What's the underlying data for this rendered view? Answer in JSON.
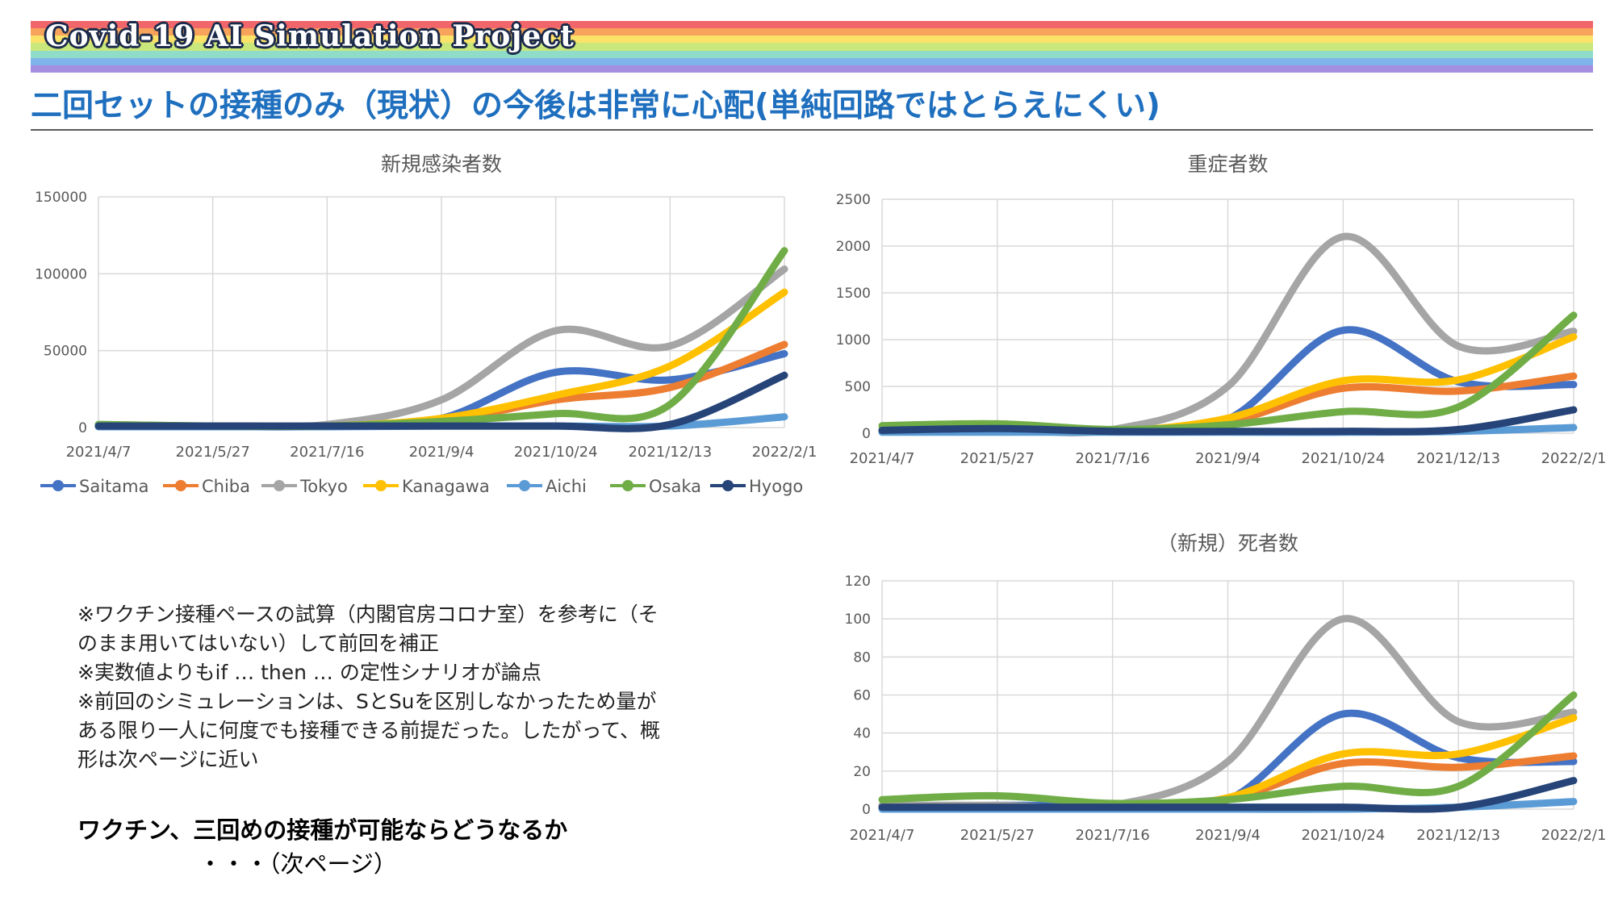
{
  "banner": {
    "title": "Covid-19 AI Simulation Project",
    "stripe_colors": [
      "#f0666b",
      "#f7a35b",
      "#fbe36a",
      "#c9e77a",
      "#8fdcc9",
      "#7fb4ea",
      "#a48ee0"
    ]
  },
  "heading": "二回セットの接種のみ（現状）の今後は非常に心配(単純回路ではとらえにくい)",
  "notes": [
    "※ワクチン接種ペースの試算（内閣官房コロナ室）を参考に（そ",
    "のまま用いてはいない）して前回を補正",
    "※実数値よりもif … then … の定性シナリオが論点",
    "※前回のシミュレーションは、SとSuを区別しなかったため量が",
    "ある限り一人に何度でも接種できる前提だった。したがって、概",
    "形は次ページに近い"
  ],
  "question": "ワクチン、三回めの接種が可能ならどうなるか",
  "next_page": "・・・（次ページ）",
  "chart_data": [
    {
      "type": "line",
      "title": "新規感染者数",
      "x": [
        "2021/4/7",
        "2021/5/27",
        "2021/7/16",
        "2021/9/4",
        "2021/10/24",
        "2021/12/13",
        "2022/2/1"
      ],
      "ylim": [
        0,
        150000
      ],
      "yticks": [
        0,
        50000,
        100000,
        150000
      ],
      "grid": true,
      "legend": "bottom",
      "series": [
        {
          "name": "Saitama",
          "color": "#4472c4",
          "values": [
            1000,
            1000,
            1000,
            6000,
            36000,
            31000,
            48000
          ]
        },
        {
          "name": "Chiba",
          "color": "#ed7d31",
          "values": [
            1000,
            1000,
            1000,
            4000,
            18000,
            26000,
            54000
          ]
        },
        {
          "name": "Tokyo",
          "color": "#a5a5a5",
          "values": [
            2000,
            1000,
            2000,
            18000,
            63000,
            53000,
            103000
          ]
        },
        {
          "name": "Kanagawa",
          "color": "#ffc000",
          "values": [
            1000,
            1000,
            1000,
            6000,
            21000,
            40000,
            88000
          ]
        },
        {
          "name": "Aichi",
          "color": "#5b9bd5",
          "values": [
            500,
            500,
            500,
            1000,
            1000,
            1000,
            7000
          ]
        },
        {
          "name": "Osaka",
          "color": "#70ad47",
          "values": [
            2000,
            1000,
            1000,
            4000,
            9000,
            15000,
            115000
          ]
        },
        {
          "name": "Hyogo",
          "color": "#264478",
          "values": [
            1000,
            1000,
            1000,
            1000,
            1000,
            2000,
            34000
          ]
        }
      ]
    },
    {
      "type": "line",
      "title": "重症者数",
      "x": [
        "2021/4/7",
        "2021/5/27",
        "2021/7/16",
        "2021/9/4",
        "2021/10/24",
        "2021/12/13",
        "2022/2/1"
      ],
      "ylim": [
        0,
        2500
      ],
      "yticks": [
        0,
        500,
        1000,
        1500,
        2000,
        2500
      ],
      "grid": true,
      "legend": "none",
      "series": [
        {
          "name": "Saitama",
          "color": "#4472c4",
          "values": [
            20,
            30,
            20,
            150,
            1100,
            550,
            520
          ]
        },
        {
          "name": "Chiba",
          "color": "#ed7d31",
          "values": [
            20,
            30,
            20,
            120,
            480,
            450,
            610
          ]
        },
        {
          "name": "Tokyo",
          "color": "#a5a5a5",
          "values": [
            40,
            40,
            40,
            500,
            2100,
            930,
            1090
          ]
        },
        {
          "name": "Kanagawa",
          "color": "#ffc000",
          "values": [
            30,
            30,
            20,
            160,
            560,
            570,
            1030
          ]
        },
        {
          "name": "Aichi",
          "color": "#5b9bd5",
          "values": [
            10,
            10,
            10,
            10,
            10,
            20,
            60
          ]
        },
        {
          "name": "Osaka",
          "color": "#70ad47",
          "values": [
            80,
            100,
            40,
            90,
            230,
            280,
            1260
          ]
        },
        {
          "name": "Hyogo",
          "color": "#264478",
          "values": [
            30,
            50,
            20,
            20,
            20,
            40,
            250
          ]
        }
      ]
    },
    {
      "type": "line",
      "title": "（新規）死者数",
      "x": [
        "2021/4/7",
        "2021/5/27",
        "2021/7/16",
        "2021/9/4",
        "2021/10/24",
        "2021/12/13",
        "2022/2/1"
      ],
      "ylim": [
        0,
        120
      ],
      "yticks": [
        0,
        20,
        40,
        60,
        80,
        100,
        120
      ],
      "grid": true,
      "legend": "none",
      "series": [
        {
          "name": "Saitama",
          "color": "#4472c4",
          "values": [
            1,
            2,
            2,
            5,
            50,
            27,
            25
          ]
        },
        {
          "name": "Chiba",
          "color": "#ed7d31",
          "values": [
            1,
            1,
            1,
            5,
            24,
            22,
            28
          ]
        },
        {
          "name": "Tokyo",
          "color": "#a5a5a5",
          "values": [
            2,
            2,
            2,
            25,
            100,
            46,
            51
          ]
        },
        {
          "name": "Kanagawa",
          "color": "#ffc000",
          "values": [
            1,
            1,
            1,
            6,
            29,
            29,
            48
          ]
        },
        {
          "name": "Aichi",
          "color": "#5b9bd5",
          "values": [
            0,
            0,
            0,
            0,
            0,
            1,
            4
          ]
        },
        {
          "name": "Osaka",
          "color": "#70ad47",
          "values": [
            5,
            7,
            3,
            5,
            12,
            12,
            60
          ]
        },
        {
          "name": "Hyogo",
          "color": "#264478",
          "values": [
            1,
            1,
            1,
            1,
            1,
            1,
            15
          ]
        }
      ]
    }
  ]
}
